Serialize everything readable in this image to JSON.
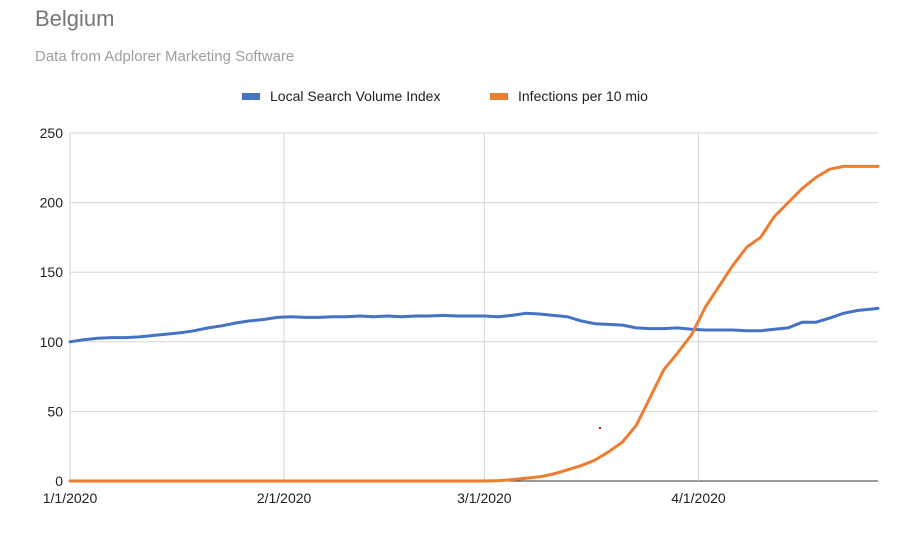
{
  "chart_data": {
    "type": "line",
    "title": "Belgium",
    "subtitle": "Data from Adplorer Marketing Software",
    "xlabel": "",
    "ylabel": "",
    "x_tick_labels": [
      "1/1/2020",
      "2/1/2020",
      "3/1/2020",
      "4/1/2020"
    ],
    "y_ticks": [
      0,
      50,
      100,
      150,
      200,
      250
    ],
    "ylim": [
      0,
      250
    ],
    "grid": true,
    "legend_position": "top",
    "x": [
      "1/1/2020",
      "1/3/2020",
      "1/5/2020",
      "1/7/2020",
      "1/9/2020",
      "1/11/2020",
      "1/13/2020",
      "1/15/2020",
      "1/17/2020",
      "1/19/2020",
      "1/21/2020",
      "1/23/2020",
      "1/25/2020",
      "1/27/2020",
      "1/29/2020",
      "1/31/2020",
      "2/2/2020",
      "2/4/2020",
      "2/6/2020",
      "2/8/2020",
      "2/10/2020",
      "2/12/2020",
      "2/14/2020",
      "2/16/2020",
      "2/18/2020",
      "2/20/2020",
      "2/22/2020",
      "2/24/2020",
      "2/26/2020",
      "2/28/2020",
      "3/1/2020",
      "3/3/2020",
      "3/5/2020",
      "3/7/2020",
      "3/9/2020",
      "3/11/2020",
      "3/13/2020",
      "3/15/2020",
      "3/17/2020",
      "3/19/2020",
      "3/21/2020",
      "3/23/2020",
      "3/25/2020",
      "3/27/2020",
      "3/29/2020",
      "3/31/2020",
      "4/2/2020",
      "4/4/2020",
      "4/6/2020",
      "4/8/2020",
      "4/10/2020",
      "4/12/2020",
      "4/14/2020",
      "4/16/2020",
      "4/18/2020",
      "4/20/2020",
      "4/22/2020",
      "4/24/2020",
      "4/26/2020",
      "4/27/2020"
    ],
    "series": [
      {
        "name": "Local Search Volume Index",
        "color": "#4472c4",
        "values": [
          100,
          101.5,
          102.5,
          103,
          103,
          103.5,
          104.5,
          105.5,
          106.5,
          108,
          110,
          111.5,
          113.5,
          115,
          116,
          117.5,
          118,
          117.5,
          117.5,
          118,
          118,
          118.5,
          118,
          118.5,
          118,
          118.5,
          118.5,
          119,
          118.5,
          118.5,
          118.5,
          118,
          119,
          120.5,
          120,
          119,
          118,
          115,
          113,
          112.5,
          112,
          110,
          109.5,
          109.5,
          110,
          109,
          108.5,
          108.5,
          108.5,
          108,
          108,
          109,
          110,
          114,
          114,
          117,
          120.5,
          122.5,
          123.5,
          124
        ]
      },
      {
        "name": "Infections per 10 mio",
        "color": "#ed7d31",
        "values": [
          0,
          0,
          0,
          0,
          0,
          0,
          0,
          0,
          0,
          0,
          0,
          0,
          0,
          0,
          0,
          0,
          0,
          0,
          0,
          0,
          0,
          0,
          0,
          0,
          0,
          0,
          0,
          0,
          0,
          0,
          0,
          0.3,
          1,
          2,
          3,
          5,
          8,
          11,
          15,
          21,
          28,
          40,
          60,
          80,
          92,
          105,
          125,
          140,
          155,
          168,
          175,
          190,
          200,
          210,
          218,
          224,
          226,
          226,
          226,
          226
        ]
      }
    ]
  }
}
